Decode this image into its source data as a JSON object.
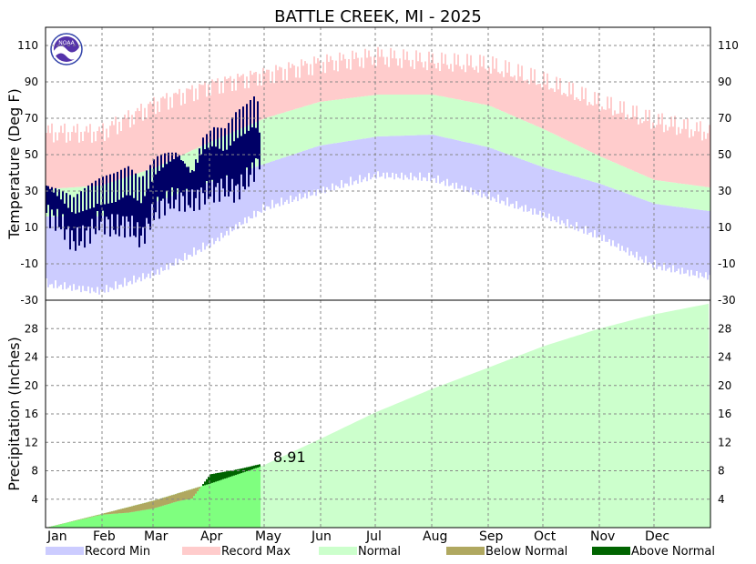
{
  "chart_data": {
    "type": "area",
    "title": "BATTLE CREEK, MI - 2025",
    "colors": {
      "record_min": "#ccccff",
      "record_max": "#ffcccc",
      "normal": "#ccffcc",
      "below_normal": "#b0a860",
      "above_normal": "#006400",
      "observed_temp": "#000066",
      "observed_precip": "#7fff7f"
    },
    "months": [
      "Jan",
      "Feb",
      "Mar",
      "Apr",
      "May",
      "Jun",
      "Jul",
      "Aug",
      "Sep",
      "Oct",
      "Nov",
      "Dec"
    ],
    "temperature_panel": {
      "ylabel": "Temperature (Deg F)",
      "ylim": [
        -30,
        120
      ],
      "yticks": [
        -30,
        -10,
        10,
        30,
        50,
        70,
        90,
        110
      ],
      "normal_high": [
        [
          0,
          31
        ],
        [
          30,
          33
        ],
        [
          60,
          43
        ],
        [
          90,
          57
        ],
        [
          120,
          70
        ],
        [
          150,
          79
        ],
        [
          182,
          83
        ],
        [
          212,
          83
        ],
        [
          243,
          77
        ],
        [
          273,
          64
        ],
        [
          304,
          49
        ],
        [
          334,
          36
        ],
        [
          364,
          32
        ]
      ],
      "normal_low": [
        [
          0,
          16
        ],
        [
          30,
          16
        ],
        [
          60,
          24
        ],
        [
          90,
          35
        ],
        [
          120,
          45
        ],
        [
          150,
          55
        ],
        [
          182,
          60
        ],
        [
          212,
          61
        ],
        [
          243,
          54
        ],
        [
          273,
          43
        ],
        [
          304,
          34
        ],
        [
          334,
          23
        ],
        [
          364,
          19
        ]
      ],
      "record_high_envelope": [
        [
          0,
          62
        ],
        [
          30,
          62
        ],
        [
          60,
          78
        ],
        [
          90,
          88
        ],
        [
          120,
          94
        ],
        [
          150,
          100
        ],
        [
          182,
          104
        ],
        [
          212,
          101
        ],
        [
          243,
          99
        ],
        [
          273,
          90
        ],
        [
          304,
          78
        ],
        [
          334,
          68
        ],
        [
          364,
          62
        ]
      ],
      "record_low_envelope": [
        [
          0,
          -18
        ],
        [
          30,
          -22
        ],
        [
          60,
          -12
        ],
        [
          90,
          4
        ],
        [
          120,
          24
        ],
        [
          150,
          33
        ],
        [
          182,
          42
        ],
        [
          212,
          40
        ],
        [
          243,
          30
        ],
        [
          273,
          20
        ],
        [
          304,
          8
        ],
        [
          334,
          -8
        ],
        [
          364,
          -14
        ]
      ],
      "observed_high": [
        [
          0,
          33
        ],
        [
          8,
          28
        ],
        [
          15,
          22
        ],
        [
          22,
          26
        ],
        [
          30,
          30
        ],
        [
          38,
          32
        ],
        [
          45,
          36
        ],
        [
          52,
          30
        ],
        [
          60,
          44
        ],
        [
          66,
          48
        ],
        [
          72,
          50
        ],
        [
          80,
          40
        ],
        [
          86,
          56
        ],
        [
          92,
          60
        ],
        [
          98,
          58
        ],
        [
          104,
          66
        ],
        [
          110,
          70
        ],
        [
          114,
          74
        ],
        [
          117,
          70
        ]
      ],
      "observed_low": [
        [
          0,
          18
        ],
        [
          8,
          12
        ],
        [
          15,
          2
        ],
        [
          22,
          6
        ],
        [
          30,
          14
        ],
        [
          38,
          10
        ],
        [
          45,
          12
        ],
        [
          52,
          4
        ],
        [
          60,
          20
        ],
        [
          66,
          24
        ],
        [
          72,
          26
        ],
        [
          80,
          24
        ],
        [
          86,
          28
        ],
        [
          92,
          30
        ],
        [
          98,
          32
        ],
        [
          104,
          30
        ],
        [
          110,
          36
        ],
        [
          114,
          42
        ],
        [
          117,
          48
        ]
      ]
    },
    "precip_panel": {
      "ylabel": "Precipitation (Inches)",
      "ylim": [
        0,
        32
      ],
      "yticks": [
        4,
        8,
        12,
        16,
        20,
        24,
        28
      ],
      "normal_cumulative": [
        [
          0,
          0
        ],
        [
          30,
          1.9
        ],
        [
          59,
          3.8
        ],
        [
          90,
          6.2
        ],
        [
          120,
          8.8
        ],
        [
          151,
          12.5
        ],
        [
          181,
          16.2
        ],
        [
          212,
          19.5
        ],
        [
          243,
          22.5
        ],
        [
          273,
          25.5
        ],
        [
          304,
          28.0
        ],
        [
          334,
          30.0
        ],
        [
          364,
          31.5
        ]
      ],
      "observed_cumulative": [
        [
          0,
          0
        ],
        [
          30,
          1.8
        ],
        [
          29,
          1.8
        ],
        [
          45,
          2.1
        ],
        [
          59,
          2.7
        ],
        [
          72,
          3.7
        ],
        [
          80,
          4.1
        ],
        [
          90,
          7.5
        ],
        [
          105,
          8.2
        ],
        [
          117,
          8.91
        ]
      ],
      "annotation": "8.91"
    },
    "legend": [
      {
        "label": "Record Min",
        "color": "#ccccff"
      },
      {
        "label": "Record Max",
        "color": "#ffcccc"
      },
      {
        "label": "Normal",
        "color": "#ccffcc"
      },
      {
        "label": "Below Normal",
        "color": "#b0a860"
      },
      {
        "label": "Above Normal",
        "color": "#006400"
      }
    ]
  }
}
